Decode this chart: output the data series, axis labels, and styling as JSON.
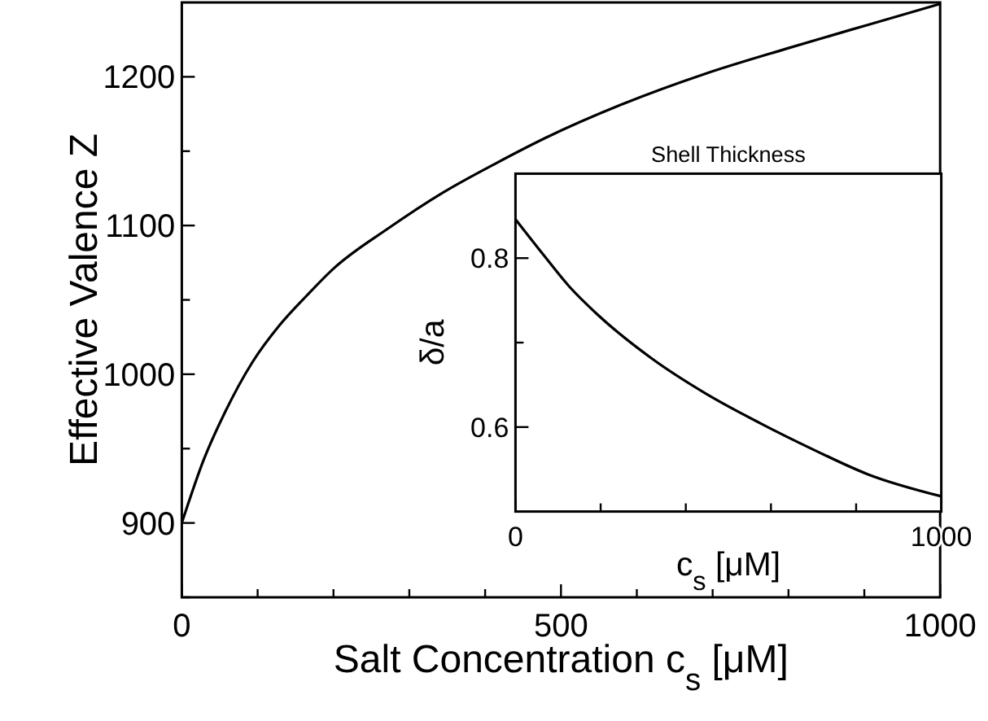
{
  "chart_data": [
    {
      "type": "line",
      "xlabel": "Salt Concentration  c$_{s}$ [μM]",
      "ylabel": "Effective Valence  Z",
      "xlim": [
        0,
        1000
      ],
      "ylim": [
        850,
        1250
      ],
      "xticks": [
        0,
        {
          "value": 100,
          "label": null
        },
        {
          "value": 200,
          "label": null
        },
        {
          "value": 300,
          "label": null
        },
        {
          "value": 400,
          "label": null
        },
        500,
        {
          "value": 600,
          "label": null
        },
        {
          "value": 700,
          "label": null
        },
        {
          "value": 800,
          "label": null
        },
        {
          "value": 900,
          "label": null
        },
        1000
      ],
      "yticks": [
        {
          "value": 850,
          "label": null
        },
        900,
        {
          "value": 950,
          "label": null
        },
        1000,
        {
          "value": 1050,
          "label": null
        },
        1100,
        {
          "value": 1150,
          "label": null
        },
        1200
      ],
      "series": [
        {
          "color": "#000000",
          "x": [
            0,
            28.5,
            57.5,
            93,
            129,
            165,
            200,
            272,
            344,
            415,
            480,
            583,
            690,
            798,
            905,
            1000
          ],
          "values": [
            900,
            942,
            975,
            1008,
            1033,
            1053,
            1071,
            1098,
            1122,
            1142,
            1159,
            1182,
            1202,
            1219,
            1235,
            1249
          ]
        }
      ],
      "marker": "none",
      "line_style": "solid"
    },
    {
      "type": "line",
      "title": "Shell Thickness",
      "xlabel": "c$_{s}$ [μM]",
      "ylabel": "δ/a",
      "xlim": [
        0,
        1000
      ],
      "ylim": [
        0.5,
        0.9
      ],
      "xticks": [
        0,
        {
          "value": 200,
          "label": null
        },
        {
          "value": 400,
          "label": null
        },
        {
          "value": 600,
          "label": null
        },
        {
          "value": 800,
          "label": null
        },
        1000
      ],
      "yticks": [
        0.6,
        {
          "value": 0.7,
          "label": null
        },
        0.8
      ],
      "series": [
        {
          "color": "#000000",
          "x": [
            0,
            64,
            127,
            191,
            318,
            446,
            573,
            701,
            828,
            1000
          ],
          "values": [
            0.846,
            0.805,
            0.766,
            0.734,
            0.682,
            0.64,
            0.605,
            0.573,
            0.544,
            0.518
          ]
        }
      ],
      "marker": "none",
      "line_style": "solid"
    }
  ]
}
